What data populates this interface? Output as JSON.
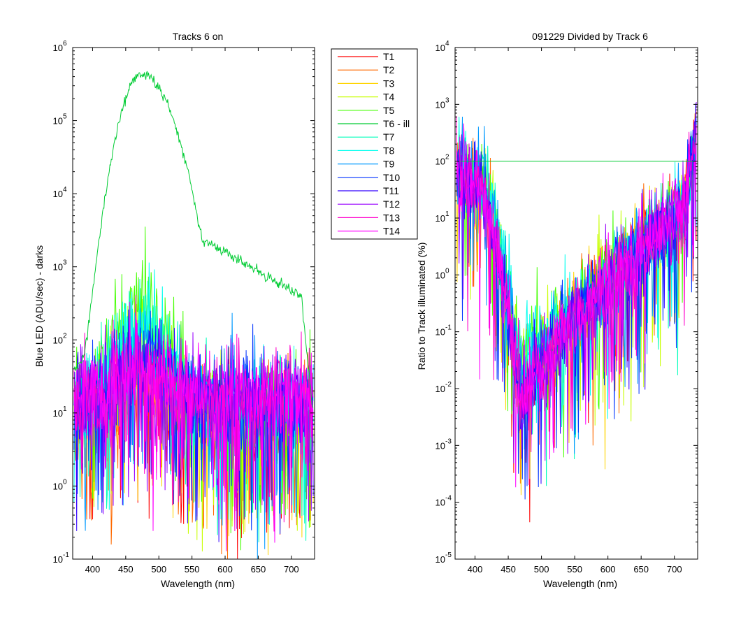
{
  "chart_data": [
    {
      "type": "line",
      "title": "Tracks 6 on",
      "xlabel": "Wavelength (nm)",
      "ylabel": "Blue LED  (ADU/sec) - darks",
      "xlim": [
        370,
        735
      ],
      "ylim": [
        0.1,
        1000000
      ],
      "yscale": "log",
      "x_ticks": [
        400,
        450,
        500,
        550,
        600,
        650,
        700
      ],
      "y_ticks": [
        {
          "base": "10",
          "exp": "-1"
        },
        {
          "base": "10",
          "exp": "0"
        },
        {
          "base": "10",
          "exp": "1"
        },
        {
          "base": "10",
          "exp": "2"
        },
        {
          "base": "10",
          "exp": "3"
        },
        {
          "base": "10",
          "exp": "4"
        },
        {
          "base": "10",
          "exp": "5"
        },
        {
          "base": "10",
          "exp": "6"
        }
      ],
      "grid": false,
      "legend": "outside-right",
      "series": [
        {
          "name": "T1",
          "color": "#ff0000",
          "peak": 8
        },
        {
          "name": "T2",
          "color": "#ff6a00",
          "peak": 9
        },
        {
          "name": "T3",
          "color": "#ffd400",
          "peak": 14
        },
        {
          "name": "T4",
          "color": "#c8ff00",
          "peak": 90
        },
        {
          "name": "T5",
          "color": "#44ff00",
          "peak": 300
        },
        {
          "name": "T6 - ill",
          "color": "#00cc33",
          "peak": 430000
        },
        {
          "name": "T7",
          "color": "#00ffbb",
          "peak": 150
        },
        {
          "name": "T8",
          "color": "#00ffee",
          "peak": 130
        },
        {
          "name": "T9",
          "color": "#0099ff",
          "peak": 55
        },
        {
          "name": "T10",
          "color": "#0033ff",
          "peak": 40
        },
        {
          "name": "T11",
          "color": "#3300ff",
          "peak": 35
        },
        {
          "name": "T12",
          "color": "#9900ff",
          "peak": 25
        },
        {
          "name": "T13",
          "color": "#ff00cc",
          "peak": 18
        },
        {
          "name": "T14",
          "color": "#ff00ff",
          "peak": 15
        }
      ]
    },
    {
      "type": "line",
      "title": "091229 Divided by Track 6",
      "xlabel": "Wavelength (nm)",
      "ylabel": "Ratio to Track illuminated (%)",
      "xlim": [
        370,
        735
      ],
      "ylim": [
        1e-05,
        10000
      ],
      "yscale": "log",
      "x_ticks": [
        400,
        450,
        500,
        550,
        600,
        650,
        700
      ],
      "y_ticks": [
        {
          "base": "10",
          "exp": "-5"
        },
        {
          "base": "10",
          "exp": "-4"
        },
        {
          "base": "10",
          "exp": "-3"
        },
        {
          "base": "10",
          "exp": "-2"
        },
        {
          "base": "10",
          "exp": "-1"
        },
        {
          "base": "10",
          "exp": "0"
        },
        {
          "base": "10",
          "exp": "1"
        },
        {
          "base": "10",
          "exp": "2"
        },
        {
          "base": "10",
          "exp": "3"
        },
        {
          "base": "10",
          "exp": "4"
        }
      ],
      "grid": false,
      "reference_line": {
        "value": 100,
        "color": "#00cc33"
      },
      "min_near": 470
    }
  ]
}
